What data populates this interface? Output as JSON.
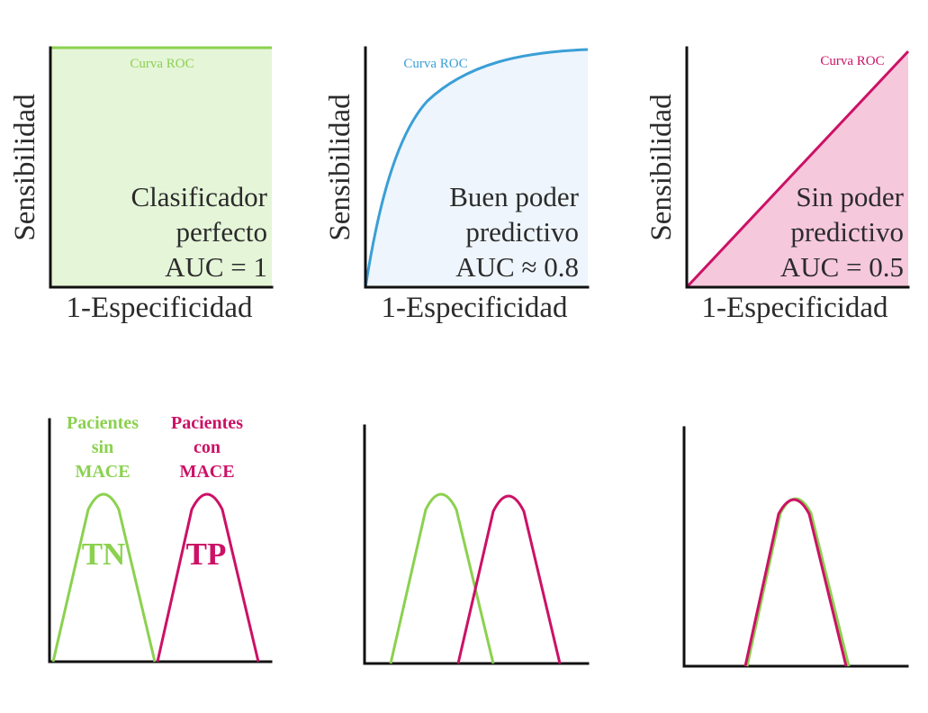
{
  "colors": {
    "green": "#8bd14f",
    "green_fill": "#e5f5d8",
    "blue": "#3a9fd6",
    "blue_fill": "#eef5fc",
    "magenta": "#cc1166",
    "magenta_fill": "#f6c8dc",
    "axis": "#111111"
  },
  "roc_panels": [
    {
      "roc_label": "Curva ROC",
      "y_axis_label": "Sensibilidad",
      "x_axis_label": "1-Especificidad",
      "lines": [
        "Clasificador",
        "perfecto",
        "AUC = 1"
      ],
      "color_key": "green",
      "fill_key": "green_fill"
    },
    {
      "roc_label": "Curva ROC",
      "y_axis_label": "Sensibilidad",
      "x_axis_label": "1-Especificidad",
      "lines": [
        "Buen poder",
        "predictivo",
        "AUC ≈ 0.8"
      ],
      "color_key": "blue",
      "fill_key": "blue_fill"
    },
    {
      "roc_label": "Curva ROC",
      "y_axis_label": "Sensibilidad",
      "x_axis_label": "1-Especificidad",
      "lines": [
        "Sin poder",
        "predictivo",
        "AUC = 0.5"
      ],
      "color_key": "magenta",
      "fill_key": "magenta_fill"
    }
  ],
  "distributions": {
    "without_mace_label": [
      "Pacientes",
      "sin",
      "MACE"
    ],
    "with_mace_label": [
      "Pacientes",
      "con",
      "MACE"
    ],
    "tn_label": "TN",
    "tp_label": "TP"
  }
}
